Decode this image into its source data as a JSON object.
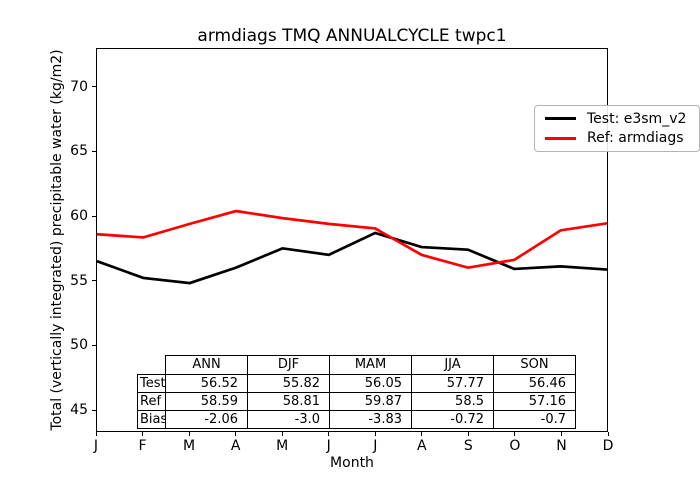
{
  "title": "armdiags TMQ ANNUALCYCLE twpc1",
  "chart_data": {
    "type": "line",
    "title": "armdiags TMQ ANNUALCYCLE twpc1",
    "xlabel": "Month",
    "ylabel": "Total (vertically integrated) precipitable water (kg/m2)",
    "x_tick_labels": [
      "J",
      "F",
      "M",
      "A",
      "M",
      "J",
      "J",
      "A",
      "S",
      "O",
      "N",
      "D"
    ],
    "y_ticks": [
      45,
      50,
      55,
      60,
      65,
      70
    ],
    "ylim": [
      43.3,
      73.0
    ],
    "grid": false,
    "legend_position": "upper-right",
    "series": [
      {
        "name": "Test: e3sm_v2",
        "color": "#000000",
        "values": [
          56.5,
          55.2,
          54.8,
          56.0,
          57.5,
          57.0,
          58.7,
          57.6,
          57.4,
          55.9,
          56.1,
          55.85
        ]
      },
      {
        "name": "Ref: armdiags",
        "color": "#ff0000",
        "values": [
          58.6,
          58.35,
          59.4,
          60.4,
          59.85,
          59.4,
          59.05,
          57.0,
          56.0,
          56.6,
          58.9,
          59.45
        ]
      }
    ]
  },
  "table": {
    "columns": [
      "ANN",
      "DJF",
      "MAM",
      "JJA",
      "SON"
    ],
    "rows": [
      {
        "label": "Test",
        "values": [
          "56.52",
          "55.82",
          "56.05",
          "57.77",
          "56.46"
        ]
      },
      {
        "label": "Ref",
        "values": [
          "58.59",
          "58.81",
          "59.87",
          "58.5",
          "57.16"
        ]
      },
      {
        "label": "Bias",
        "values": [
          "-2.06",
          "-3.0",
          "-3.83",
          "-0.72",
          "-0.7"
        ]
      }
    ]
  }
}
